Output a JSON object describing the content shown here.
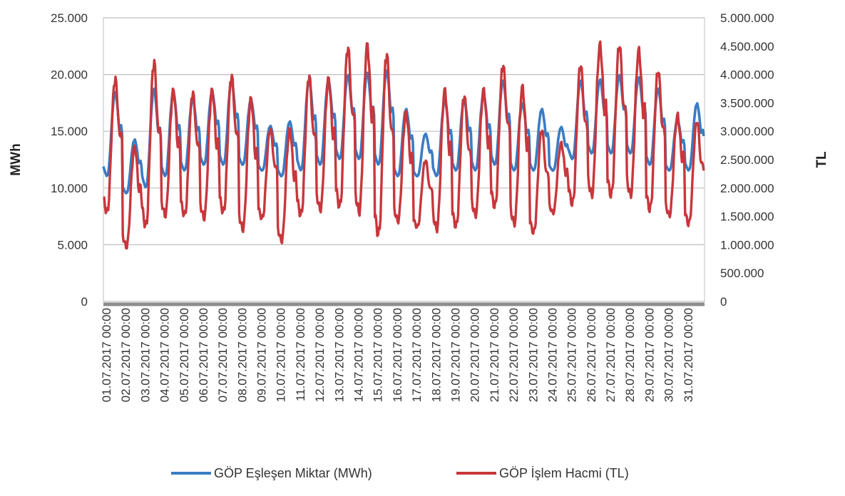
{
  "chart_data": {
    "type": "line",
    "title": "",
    "xlabel": "",
    "ylabel": "MWh",
    "y2label": "TL",
    "ylim": [
      0,
      25000
    ],
    "y2lim": [
      0,
      5000000
    ],
    "y_ticks": [
      "0",
      "5.000",
      "10.000",
      "15.000",
      "20.000",
      "25.000"
    ],
    "y2_ticks": [
      "0",
      "500.000",
      "1.000.000",
      "1.500.000",
      "2.000.000",
      "2.500.000",
      "3.000.000",
      "3.500.000",
      "4.000.000",
      "4.500.000",
      "5.000.000"
    ],
    "x_labels": [
      "01.07.2017 00:00",
      "02.07.2017 00:00",
      "03.07.2017 00:00",
      "04.07.2017 00:00",
      "05.07.2017 00:00",
      "06.07.2017 00:00",
      "07.07.2017 00:00",
      "08.07.2017 00:00",
      "09.07.2017 00:00",
      "10.07.2017 00:00",
      "11.07.2017 00:00",
      "12.07.2017 00:00",
      "13.07.2017 00:00",
      "14.07.2017 00:00",
      "15.07.2017 00:00",
      "16.07.2017 00:00",
      "17.07.2017 00:00",
      "18.07.2017 00:00",
      "19.07.2017 00:00",
      "20.07.2017 00:00",
      "21.07.2017 00:00",
      "22.07.2017 00:00",
      "23.07.2017 00:00",
      "24.07.2017 00:00",
      "25.07.2017 00:00",
      "26.07.2017 00:00",
      "27.07.2017 00:00",
      "28.07.2017 00:00",
      "29.07.2017 00:00",
      "30.07.2017 00:00",
      "31.07.2017 00:00"
    ],
    "grid": true,
    "legend_position": "bottom",
    "series": [
      {
        "name": "GÖP Eşleşen Miktar (MWh)",
        "axis": "left",
        "color": "#3a7cc4",
        "daily_min": [
          11000,
          9500,
          10000,
          11000,
          11500,
          12000,
          12000,
          12000,
          11500,
          11000,
          11500,
          12000,
          12500,
          12500,
          12000,
          11000,
          11000,
          11000,
          11500,
          11500,
          12000,
          11500,
          11500,
          11500,
          12500,
          13000,
          13000,
          13000,
          12000,
          11500,
          11500
        ],
        "daily_max": [
          18500,
          14300,
          18800,
          18500,
          17900,
          18500,
          19500,
          17800,
          15500,
          15900,
          19600,
          19500,
          20000,
          20200,
          20400,
          17000,
          14800,
          17800,
          17800,
          18300,
          19500,
          17500,
          17000,
          15400,
          19500,
          19600,
          20000,
          19800,
          18800,
          16000,
          17500
        ]
      },
      {
        "name": "GÖP İşlem Hacmi (TL)",
        "axis": "right",
        "color": "#c8373c",
        "daily_min": [
          1550000,
          950000,
          1300000,
          1500000,
          1500000,
          1450000,
          1550000,
          1250000,
          1450000,
          1050000,
          1500000,
          1600000,
          1650000,
          1550000,
          1150000,
          1400000,
          1300000,
          1250000,
          1300000,
          1500000,
          1650000,
          1350000,
          1200000,
          1550000,
          1700000,
          1850000,
          1850000,
          1850000,
          1600000,
          1500000,
          1350000
        ],
        "daily_max": [
          3950000,
          2750000,
          4250000,
          3750000,
          3700000,
          3750000,
          4000000,
          3600000,
          3050000,
          3050000,
          4000000,
          3950000,
          4500000,
          4550000,
          4400000,
          3350000,
          2500000,
          3750000,
          3650000,
          3750000,
          4200000,
          3800000,
          3050000,
          2800000,
          4200000,
          4550000,
          4550000,
          4450000,
          4100000,
          3300000,
          3200000
        ]
      }
    ]
  }
}
